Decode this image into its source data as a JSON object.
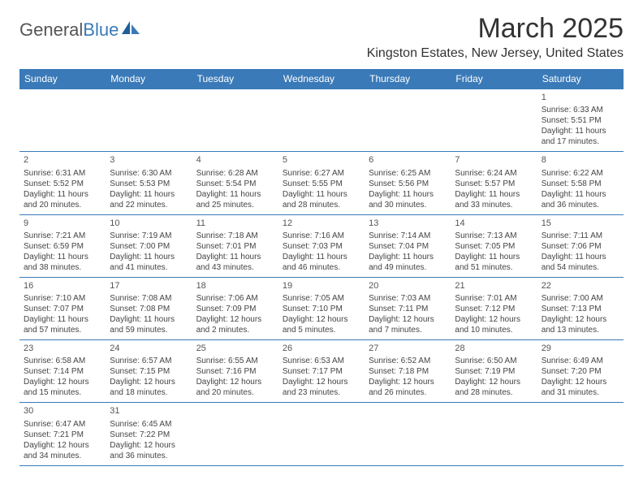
{
  "branding": {
    "logo_text_1": "General",
    "logo_text_2": "Blue",
    "logo_color_1": "#555555",
    "logo_color_2": "#3a7ab8"
  },
  "header": {
    "month_title": "March 2025",
    "location": "Kingston Estates, New Jersey, United States",
    "title_fontsize": 34,
    "location_fontsize": 16
  },
  "calendar": {
    "type": "table",
    "header_bg": "#3a7ab8",
    "header_fg": "#ffffff",
    "border_color": "#3a7ab8",
    "cell_font_size": 10,
    "day_headers": [
      "Sunday",
      "Monday",
      "Tuesday",
      "Wednesday",
      "Thursday",
      "Friday",
      "Saturday"
    ],
    "weeks": [
      [
        null,
        null,
        null,
        null,
        null,
        null,
        {
          "n": "1",
          "sr": "6:33 AM",
          "ss": "5:51 PM",
          "dl": "11 hours and 17 minutes."
        }
      ],
      [
        {
          "n": "2",
          "sr": "6:31 AM",
          "ss": "5:52 PM",
          "dl": "11 hours and 20 minutes."
        },
        {
          "n": "3",
          "sr": "6:30 AM",
          "ss": "5:53 PM",
          "dl": "11 hours and 22 minutes."
        },
        {
          "n": "4",
          "sr": "6:28 AM",
          "ss": "5:54 PM",
          "dl": "11 hours and 25 minutes."
        },
        {
          "n": "5",
          "sr": "6:27 AM",
          "ss": "5:55 PM",
          "dl": "11 hours and 28 minutes."
        },
        {
          "n": "6",
          "sr": "6:25 AM",
          "ss": "5:56 PM",
          "dl": "11 hours and 30 minutes."
        },
        {
          "n": "7",
          "sr": "6:24 AM",
          "ss": "5:57 PM",
          "dl": "11 hours and 33 minutes."
        },
        {
          "n": "8",
          "sr": "6:22 AM",
          "ss": "5:58 PM",
          "dl": "11 hours and 36 minutes."
        }
      ],
      [
        {
          "n": "9",
          "sr": "7:21 AM",
          "ss": "6:59 PM",
          "dl": "11 hours and 38 minutes."
        },
        {
          "n": "10",
          "sr": "7:19 AM",
          "ss": "7:00 PM",
          "dl": "11 hours and 41 minutes."
        },
        {
          "n": "11",
          "sr": "7:18 AM",
          "ss": "7:01 PM",
          "dl": "11 hours and 43 minutes."
        },
        {
          "n": "12",
          "sr": "7:16 AM",
          "ss": "7:03 PM",
          "dl": "11 hours and 46 minutes."
        },
        {
          "n": "13",
          "sr": "7:14 AM",
          "ss": "7:04 PM",
          "dl": "11 hours and 49 minutes."
        },
        {
          "n": "14",
          "sr": "7:13 AM",
          "ss": "7:05 PM",
          "dl": "11 hours and 51 minutes."
        },
        {
          "n": "15",
          "sr": "7:11 AM",
          "ss": "7:06 PM",
          "dl": "11 hours and 54 minutes."
        }
      ],
      [
        {
          "n": "16",
          "sr": "7:10 AM",
          "ss": "7:07 PM",
          "dl": "11 hours and 57 minutes."
        },
        {
          "n": "17",
          "sr": "7:08 AM",
          "ss": "7:08 PM",
          "dl": "11 hours and 59 minutes."
        },
        {
          "n": "18",
          "sr": "7:06 AM",
          "ss": "7:09 PM",
          "dl": "12 hours and 2 minutes."
        },
        {
          "n": "19",
          "sr": "7:05 AM",
          "ss": "7:10 PM",
          "dl": "12 hours and 5 minutes."
        },
        {
          "n": "20",
          "sr": "7:03 AM",
          "ss": "7:11 PM",
          "dl": "12 hours and 7 minutes."
        },
        {
          "n": "21",
          "sr": "7:01 AM",
          "ss": "7:12 PM",
          "dl": "12 hours and 10 minutes."
        },
        {
          "n": "22",
          "sr": "7:00 AM",
          "ss": "7:13 PM",
          "dl": "12 hours and 13 minutes."
        }
      ],
      [
        {
          "n": "23",
          "sr": "6:58 AM",
          "ss": "7:14 PM",
          "dl": "12 hours and 15 minutes."
        },
        {
          "n": "24",
          "sr": "6:57 AM",
          "ss": "7:15 PM",
          "dl": "12 hours and 18 minutes."
        },
        {
          "n": "25",
          "sr": "6:55 AM",
          "ss": "7:16 PM",
          "dl": "12 hours and 20 minutes."
        },
        {
          "n": "26",
          "sr": "6:53 AM",
          "ss": "7:17 PM",
          "dl": "12 hours and 23 minutes."
        },
        {
          "n": "27",
          "sr": "6:52 AM",
          "ss": "7:18 PM",
          "dl": "12 hours and 26 minutes."
        },
        {
          "n": "28",
          "sr": "6:50 AM",
          "ss": "7:19 PM",
          "dl": "12 hours and 28 minutes."
        },
        {
          "n": "29",
          "sr": "6:49 AM",
          "ss": "7:20 PM",
          "dl": "12 hours and 31 minutes."
        }
      ],
      [
        {
          "n": "30",
          "sr": "6:47 AM",
          "ss": "7:21 PM",
          "dl": "12 hours and 34 minutes."
        },
        {
          "n": "31",
          "sr": "6:45 AM",
          "ss": "7:22 PM",
          "dl": "12 hours and 36 minutes."
        },
        null,
        null,
        null,
        null,
        null
      ]
    ],
    "labels": {
      "sunrise_prefix": "Sunrise: ",
      "sunset_prefix": "Sunset: ",
      "daylight_prefix": "Daylight: "
    }
  }
}
